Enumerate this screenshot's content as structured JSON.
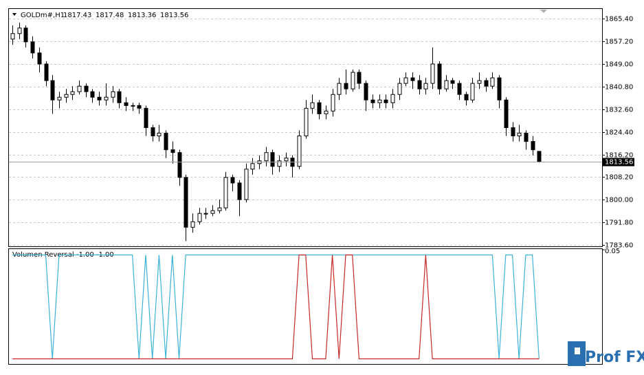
{
  "chart_data": [
    {
      "type": "candlestick",
      "title": "GOLDm#,H1",
      "open": [
        1858,
        1860,
        1862,
        1857,
        1853,
        1849,
        1843,
        1836,
        1837,
        1838,
        1839,
        1841,
        1839,
        1837,
        1836,
        1837,
        1839,
        1835,
        1834,
        1834,
        1833,
        1826,
        1823,
        1824,
        1818,
        1817,
        1808,
        1790,
        1792,
        1795,
        1795,
        1796,
        1797,
        1808,
        1806,
        1800,
        1811,
        1813,
        1814,
        1817,
        1812,
        1814,
        1815,
        1812,
        1823,
        1833,
        1835,
        1831,
        1832,
        1838,
        1842,
        1840,
        1846,
        1842,
        1836,
        1835,
        1836,
        1835,
        1838,
        1842,
        1844,
        1843,
        1840,
        1842,
        1849,
        1840,
        1843,
        1842,
        1838,
        1836,
        1842,
        1843,
        1841,
        1844,
        1836,
        1826,
        1823,
        1824,
        1821,
        1817.43
      ],
      "high": [
        1863,
        1864,
        1863,
        1859,
        1855,
        1850,
        1845,
        1839,
        1840,
        1841,
        1843,
        1842,
        1840,
        1839,
        1842,
        1841,
        1840,
        1837,
        1835,
        1835,
        1834,
        1827,
        1827,
        1825,
        1821,
        1818,
        1809,
        1795,
        1797,
        1797,
        1798,
        1800,
        1810,
        1809,
        1807,
        1813,
        1815,
        1816,
        1819,
        1818,
        1816,
        1817,
        1816,
        1825,
        1836,
        1838,
        1836,
        1834,
        1840,
        1844,
        1847,
        1847,
        1847,
        1843,
        1838,
        1838,
        1838,
        1840,
        1844,
        1846,
        1846,
        1845,
        1844,
        1855,
        1850,
        1845,
        1844,
        1843,
        1839,
        1844,
        1846,
        1844,
        1846,
        1845,
        1837,
        1828,
        1827,
        1825,
        1823,
        1817.48
      ],
      "low": [
        1856,
        1858,
        1855,
        1851,
        1846,
        1841,
        1831,
        1833,
        1835,
        1836,
        1838,
        1837,
        1835,
        1834,
        1834,
        1835,
        1833,
        1832,
        1832,
        1831,
        1823,
        1821,
        1821,
        1815,
        1813,
        1805,
        1785,
        1788,
        1791,
        1793,
        1794,
        1795,
        1796,
        1803,
        1794,
        1799,
        1809,
        1811,
        1812,
        1809,
        1810,
        1812,
        1808,
        1811,
        1822,
        1831,
        1829,
        1829,
        1830,
        1836,
        1838,
        1839,
        1840,
        1832,
        1833,
        1833,
        1833,
        1833,
        1836,
        1841,
        1840,
        1838,
        1838,
        1840,
        1838,
        1839,
        1840,
        1836,
        1834,
        1835,
        1840,
        1839,
        1840,
        1833,
        1823,
        1821,
        1821,
        1818,
        1816,
        1813.36
      ],
      "close": [
        1860,
        1862,
        1857,
        1853,
        1849,
        1843,
        1836,
        1837,
        1838,
        1839,
        1841,
        1839,
        1837,
        1836,
        1837,
        1839,
        1835,
        1834,
        1834,
        1833,
        1826,
        1823,
        1824,
        1818,
        1817,
        1808,
        1790,
        1792,
        1795,
        1795,
        1796,
        1797,
        1808,
        1806,
        1800,
        1811,
        1813,
        1814,
        1817,
        1812,
        1814,
        1815,
        1812,
        1823,
        1833,
        1835,
        1831,
        1832,
        1838,
        1842,
        1840,
        1846,
        1842,
        1836,
        1835,
        1836,
        1835,
        1838,
        1842,
        1844,
        1843,
        1840,
        1842,
        1849,
        1840,
        1843,
        1842,
        1838,
        1836,
        1842,
        1843,
        1841,
        1844,
        1836,
        1826,
        1823,
        1824,
        1821,
        1818,
        1813.56
      ],
      "ylim": [
        1783.1,
        1868.9
      ],
      "yticks": [
        {
          "value": 1865.4,
          "label": "1865.40"
        },
        {
          "value": 1857.2,
          "label": "1857.20"
        },
        {
          "value": 1849,
          "label": "1849.00"
        },
        {
          "value": 1840.8,
          "label": "1840.80"
        },
        {
          "value": 1832.6,
          "label": "1832.60"
        },
        {
          "value": 1824.4,
          "label": "1824.40"
        },
        {
          "value": 1816.2,
          "label": "1816.20"
        },
        {
          "value": 1808.2,
          "label": "1808.20"
        },
        {
          "value": 1800,
          "label": "1800.00"
        },
        {
          "value": 1791.8,
          "label": "1791.80"
        },
        {
          "value": 1783.6,
          "label": "1783.60"
        }
      ],
      "grid": true,
      "color_up": "#ffffff",
      "color_down": "#000000"
    },
    {
      "type": "line",
      "title": "Volumen Reversal -1.00 -1.00",
      "series": [
        {
          "color": "#3bb3d6",
          "values": [
            0,
            0,
            0,
            0,
            0,
            0,
            -1,
            0,
            0,
            0,
            0,
            0,
            0,
            0,
            0,
            0,
            0,
            0,
            0,
            -1,
            0,
            -1,
            0,
            -1,
            0,
            -1,
            0,
            0,
            0,
            0,
            0,
            0,
            0,
            0,
            0,
            0,
            0,
            0,
            0,
            0,
            0,
            0,
            0,
            0,
            0,
            0,
            0,
            0,
            0,
            0,
            0,
            0,
            0,
            0,
            0,
            0,
            0,
            0,
            0,
            0,
            0,
            0,
            0,
            0,
            0,
            0,
            0,
            0,
            0,
            0,
            0,
            0,
            0,
            -1,
            0,
            0,
            -1,
            0,
            0,
            -1
          ]
        },
        {
          "color": "#c62828",
          "values": [
            -1,
            -1,
            -1,
            -1,
            -1,
            -1,
            -1,
            -1,
            -1,
            -1,
            -1,
            -1,
            -1,
            -1,
            -1,
            -1,
            -1,
            -1,
            -1,
            -1,
            -1,
            -1,
            -1,
            -1,
            -1,
            -1,
            -1,
            -1,
            -1,
            -1,
            -1,
            -1,
            -1,
            -1,
            -1,
            -1,
            -1,
            -1,
            -1,
            -1,
            -1,
            -1,
            -1,
            0,
            0,
            -1,
            -1,
            -1,
            0,
            -1,
            0,
            0,
            -1,
            -1,
            -1,
            -1,
            -1,
            -1,
            -1,
            -1,
            -1,
            -1,
            0,
            -1,
            -1,
            -1,
            -1,
            -1,
            -1,
            -1,
            -1,
            -1,
            -1,
            -1,
            -1,
            -1,
            -1,
            -1,
            -1,
            -1
          ]
        }
      ],
      "ylim": [
        -1.05,
        0.05
      ],
      "yticks": [
        0.05
      ]
    }
  ],
  "watermark": "Prof FX"
}
